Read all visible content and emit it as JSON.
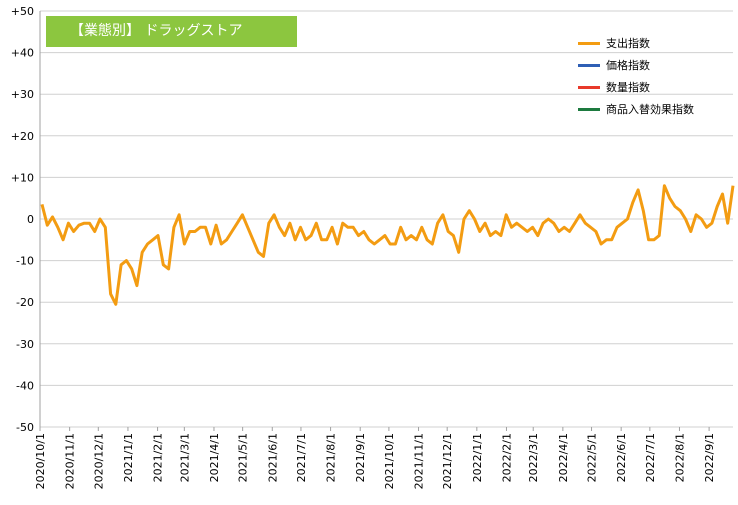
{
  "title": "【業態別】 ドラッグストア",
  "legend": [
    {
      "name": "支出指数",
      "color": "#f39c12"
    },
    {
      "name": "価格指数",
      "color": "#2e5fb5"
    },
    {
      "name": "数量指数",
      "color": "#e8392a"
    },
    {
      "name": "商品入替効果指数",
      "color": "#1d7a3f"
    }
  ],
  "chart_data": {
    "type": "line",
    "ylim": [
      -50,
      50
    ],
    "yticks": [
      "+50",
      "+40",
      "+30",
      "+20",
      "+10",
      "0",
      "-10",
      "-20",
      "-30",
      "-40",
      "-50"
    ],
    "xticks": [
      "2020/10/1",
      "2020/11/1",
      "2020/12/1",
      "2021/1/1",
      "2021/2/1",
      "2021/3/1",
      "2021/4/1",
      "2021/5/1",
      "2021/6/1",
      "2021/7/1",
      "2021/8/1",
      "2021/9/1",
      "2021/10/1",
      "2021/11/1",
      "2021/12/1",
      "2022/1/1",
      "2022/2/1",
      "2022/3/1",
      "2022/4/1",
      "2022/5/1",
      "2022/6/1",
      "2022/7/1",
      "2022/8/1",
      "2022/9/1"
    ],
    "x_start": "2020/10/1",
    "x_end": "2022/9/26",
    "series": [
      {
        "name": "支出指数",
        "color": "#f39c12",
        "values": [
          3.5,
          -1.5,
          0.5,
          -2,
          -5,
          -1,
          -3,
          -1.5,
          -1,
          -1,
          -3,
          0,
          -2,
          -18,
          -20.5,
          -11,
          -10,
          -12,
          -16,
          -8,
          -6,
          -5,
          -4,
          -11,
          -12,
          -2,
          1,
          -6,
          -3,
          -3,
          -2,
          -2,
          -6,
          -1.5,
          -6,
          -5,
          -3,
          -1,
          1,
          -2,
          -5,
          -8,
          -9,
          -1,
          1,
          -2,
          -4,
          -1,
          -5,
          -2,
          -5,
          -4,
          -1,
          -5,
          -5,
          -2,
          -6,
          -1,
          -2,
          -2,
          -4,
          -3,
          -5,
          -6,
          -5,
          -4,
          -6,
          -6,
          -2,
          -5,
          -4,
          -5,
          -2,
          -5,
          -6,
          -1,
          1,
          -3,
          -4,
          -8,
          0,
          2,
          0,
          -3,
          -1,
          -4,
          -3,
          -4,
          1,
          -2,
          -1,
          -2,
          -3,
          -2,
          -4,
          -1,
          0,
          -1,
          -3,
          -2,
          -3,
          -1,
          1,
          -1,
          -2,
          -3,
          -6,
          -5,
          -5,
          -2,
          -1,
          0,
          4,
          7,
          2,
          -5,
          -5,
          -4,
          8,
          5,
          3,
          2,
          0,
          -3,
          1,
          0,
          -2,
          -1,
          3,
          6,
          -1,
          8
        ],
        "values_note": ""
      },
      {
        "name": "価格指数",
        "color": "#2e5fb5",
        "values": []
      },
      {
        "name": "数量指数",
        "color": "#e8392a",
        "values": []
      },
      {
        "name": "商品入替効果指数",
        "color": "#1d7a3f",
        "values": []
      }
    ]
  }
}
